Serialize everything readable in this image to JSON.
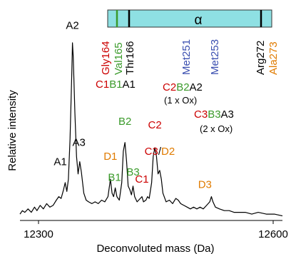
{
  "chart_data": {
    "type": "line",
    "xlabel": "Deconvoluted mass (Da)",
    "ylabel": "Relative intensity",
    "xlim": [
      12285,
      12610
    ],
    "x_ticks": [
      12300,
      12600
    ],
    "x_tick_labels": [
      "12300",
      "12600"
    ],
    "series": [
      {
        "points": [
          [
            12285,
            2
          ],
          [
            12288,
            4
          ],
          [
            12291,
            3
          ],
          [
            12295,
            5
          ],
          [
            12299,
            3
          ],
          [
            12303,
            6
          ],
          [
            12306,
            4
          ],
          [
            12310,
            7
          ],
          [
            12314,
            5
          ],
          [
            12318,
            8
          ],
          [
            12322,
            6
          ],
          [
            12326,
            7
          ],
          [
            12330,
            10
          ],
          [
            12333,
            12
          ],
          [
            12336,
            11
          ],
          [
            12339,
            16
          ],
          [
            12341,
            20
          ],
          [
            12343,
            15
          ],
          [
            12345,
            22
          ],
          [
            12347,
            45
          ],
          [
            12349,
            80
          ],
          [
            12350,
            100
          ],
          [
            12351,
            92
          ],
          [
            12353,
            60
          ],
          [
            12355,
            35
          ],
          [
            12357,
            25
          ],
          [
            12359,
            32
          ],
          [
            12361,
            26
          ],
          [
            12364,
            14
          ],
          [
            12367,
            10
          ],
          [
            12370,
            9
          ],
          [
            12374,
            8
          ],
          [
            12378,
            9
          ],
          [
            12382,
            8
          ],
          [
            12386,
            10
          ],
          [
            12390,
            9
          ],
          [
            12394,
            12
          ],
          [
            12397,
            22
          ],
          [
            12399,
            14
          ],
          [
            12401,
            12
          ],
          [
            12403,
            17
          ],
          [
            12405,
            12
          ],
          [
            12408,
            10
          ],
          [
            12411,
            20
          ],
          [
            12413,
            38
          ],
          [
            12415,
            43
          ],
          [
            12417,
            32
          ],
          [
            12419,
            18
          ],
          [
            12421,
            16
          ],
          [
            12423,
            13
          ],
          [
            12425,
            18
          ],
          [
            12427,
            12
          ],
          [
            12430,
            9
          ],
          [
            12434,
            11
          ],
          [
            12436,
            12
          ],
          [
            12438,
            9
          ],
          [
            12441,
            10
          ],
          [
            12443,
            12
          ],
          [
            12445,
            11
          ],
          [
            12448,
            20
          ],
          [
            12450,
            35
          ],
          [
            12452,
            40
          ],
          [
            12454,
            35
          ],
          [
            12456,
            25
          ],
          [
            12458,
            27
          ],
          [
            12460,
            22
          ],
          [
            12462,
            14
          ],
          [
            12466,
            9
          ],
          [
            12470,
            10
          ],
          [
            12474,
            8
          ],
          [
            12478,
            11
          ],
          [
            12481,
            10
          ],
          [
            12484,
            8
          ],
          [
            12488,
            7
          ],
          [
            12492,
            6
          ],
          [
            12496,
            5
          ],
          [
            12500,
            6
          ],
          [
            12504,
            5
          ],
          [
            12508,
            6
          ],
          [
            12512,
            5
          ],
          [
            12516,
            7
          ],
          [
            12520,
            9
          ],
          [
            12522,
            12
          ],
          [
            12524,
            9
          ],
          [
            12527,
            6
          ],
          [
            12532,
            5
          ],
          [
            12538,
            4
          ],
          [
            12544,
            4
          ],
          [
            12550,
            3
          ],
          [
            12556,
            3
          ],
          [
            12564,
            3
          ],
          [
            12572,
            2
          ],
          [
            12580,
            3
          ],
          [
            12590,
            2
          ],
          [
            12600,
            2
          ],
          [
            12610,
            1
          ]
        ]
      }
    ]
  },
  "peak_labels": [
    {
      "mass": 12335,
      "height": 30,
      "color": "#000000",
      "parts": [
        "A1"
      ]
    },
    {
      "mass": 12350,
      "height": 108,
      "color": "#000000",
      "parts": [
        "A2"
      ]
    },
    {
      "mass": 12358,
      "height": 41,
      "color": "#000000",
      "parts": [
        "A3"
      ]
    },
    {
      "mass": 12397,
      "height": 33,
      "color": "#e07b00",
      "parts": [
        "D1"
      ]
    },
    {
      "mass": 12402,
      "height": 21,
      "color": "#3a9a2a",
      "parts": [
        "B1"
      ]
    },
    {
      "mass": 12415,
      "height": 53,
      "color": "#3a9a2a",
      "parts": [
        "B2"
      ]
    },
    {
      "mass": 12425,
      "height": 24,
      "color": "#3a9a2a",
      "parts": [
        "B3"
      ]
    },
    {
      "mass": 12436,
      "height": 20,
      "color": "#cc0000",
      "parts": [
        "C1"
      ]
    },
    {
      "mass": 12452,
      "height": 51,
      "color": "#cc0000",
      "parts": [
        "C2"
      ]
    },
    {
      "mass": 12458,
      "height": 36,
      "color": "#cc0000",
      "parts": [
        "C3",
        "/",
        "D2"
      ]
    },
    {
      "mass": 12514,
      "height": 17,
      "color": "#e07b00",
      "parts": [
        "D3"
      ]
    }
  ],
  "part_colors": {
    "C3": "#cc0000",
    "/": "#000000",
    "D2": "#e07b00"
  },
  "protein_map": {
    "label": "α",
    "markers": [
      {
        "color": "#3a9a2a"
      },
      {
        "color": "#000000"
      },
      {
        "color": "#000000"
      }
    ],
    "residues": [
      {
        "text": "Gly164",
        "color": "#cc0000"
      },
      {
        "text": "Val165",
        "color": "#3a9a2a"
      },
      {
        "text": "Thr166",
        "color": "#000000"
      },
      {
        "text": "Met251",
        "color": "#3b4fb0"
      },
      {
        "text": "Met253",
        "color": "#3b4fb0"
      },
      {
        "text": "Arg272",
        "color": "#000000"
      },
      {
        "text": "Ala273",
        "color": "#e07b00"
      }
    ]
  },
  "fragment_labels": [
    {
      "segments": [
        {
          "text": "C1",
          "color": "#cc0000"
        },
        {
          "text": "B1",
          "color": "#3a9a2a"
        },
        {
          "text": "A1",
          "color": "#000000"
        }
      ]
    },
    {
      "segments": [
        {
          "text": "C2",
          "color": "#cc0000"
        },
        {
          "text": "B2",
          "color": "#3a9a2a"
        },
        {
          "text": "A2",
          "color": "#000000"
        }
      ],
      "note": "(1 x Ox)"
    },
    {
      "segments": [
        {
          "text": "C3",
          "color": "#cc0000"
        },
        {
          "text": "B3",
          "color": "#3a9a2a"
        },
        {
          "text": "A3",
          "color": "#000000"
        }
      ],
      "note": "(2 x Ox)"
    }
  ]
}
